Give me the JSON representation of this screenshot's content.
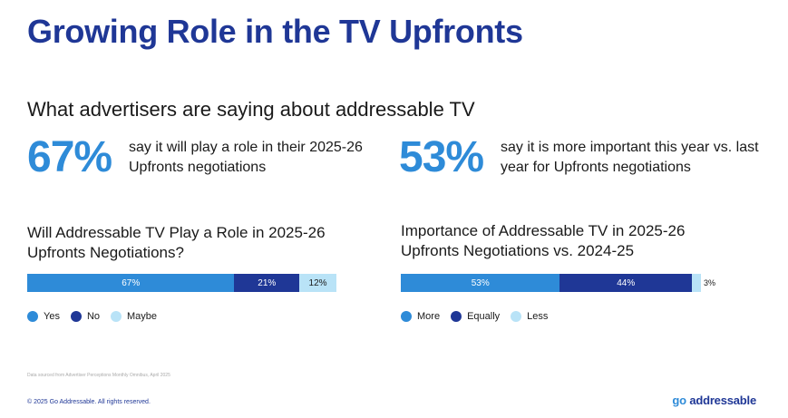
{
  "header": {
    "title": "Growing Role in the TV Upfronts",
    "subtitle": "What advertisers are saying about addressable TV"
  },
  "stats": [
    {
      "value": "67%",
      "text": "say it will play a role in their 2025-26 Upfronts negotiations"
    },
    {
      "value": "53%",
      "text": "say it is more important this year vs. last year for Upfronts negotiations"
    }
  ],
  "colors": {
    "title": "#1f3796",
    "accent": "#2e8bd8",
    "dark_blue": "#1f3796",
    "light_blue": "#b9e3f7"
  },
  "chart_data": [
    {
      "type": "bar",
      "orientation": "horizontal-stacked",
      "title": "Will Addressable TV Play a Role in 2025-26 Upfronts Negotiations?",
      "categories": [
        ""
      ],
      "series": [
        {
          "name": "Yes",
          "values": [
            67
          ],
          "label": "67%",
          "color": "#2e8bd8"
        },
        {
          "name": "No",
          "values": [
            21
          ],
          "label": "21%",
          "color": "#1f3796"
        },
        {
          "name": "Maybe",
          "values": [
            12
          ],
          "label": "12%",
          "color": "#b9e3f7"
        }
      ],
      "legend_position": "bottom-left"
    },
    {
      "type": "bar",
      "orientation": "horizontal-stacked",
      "title": "Importance of Addressable TV in 2025-26 Upfronts Negotiations vs. 2024-25",
      "categories": [
        ""
      ],
      "series": [
        {
          "name": "More",
          "values": [
            53
          ],
          "label": "53%",
          "color": "#2e8bd8"
        },
        {
          "name": "Equally",
          "values": [
            44
          ],
          "label": "44%",
          "color": "#1f3796"
        },
        {
          "name": "Less",
          "values": [
            3
          ],
          "label": "3%",
          "color": "#b9e3f7"
        }
      ],
      "legend_position": "bottom-left"
    }
  ],
  "footer": {
    "source": "Data sourced from Advertiser Perceptions Monthly Omnibus, April 2025",
    "copyright": "© 2025 Go Addressable. All rights reserved.",
    "logo_go": "go",
    "logo_rest": "addressable"
  }
}
